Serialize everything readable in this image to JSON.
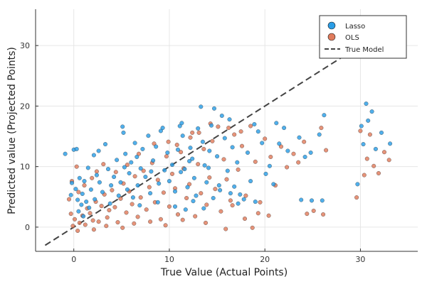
{
  "chart_data": {
    "type": "scatter",
    "title": "",
    "xlabel": "True Value (Actual Points)",
    "ylabel": "Predicted value (Projected Points)",
    "xlim": [
      -4,
      36
    ],
    "ylim": [
      -4,
      36
    ],
    "xticks": [
      0,
      10,
      20,
      30
    ],
    "yticks": [
      0,
      10,
      20,
      30
    ],
    "grid": true,
    "legend_position": "top-right",
    "series": [
      {
        "name": "Lasso",
        "color": "#2a9de6",
        "points": [
          [
            -0.2,
            7.3
          ],
          [
            0,
            12.8
          ],
          [
            0.3,
            12.9
          ],
          [
            -0.9,
            12.1
          ],
          [
            0.6,
            8.1
          ],
          [
            0.2,
            6.3
          ],
          [
            -0.3,
            5.3
          ],
          [
            0.4,
            4.5
          ],
          [
            0.8,
            3.7
          ],
          [
            1.1,
            7.6
          ],
          [
            1.5,
            9.8
          ],
          [
            0.9,
            5.5
          ],
          [
            1.3,
            4.2
          ],
          [
            1.8,
            6.2
          ],
          [
            2.1,
            11.9
          ],
          [
            2.4,
            8.6
          ],
          [
            2.7,
            7.4
          ],
          [
            3.0,
            5.8
          ],
          [
            2.6,
            12.6
          ],
          [
            3.3,
            13.7
          ],
          [
            3.6,
            9.6
          ],
          [
            3.9,
            6.9
          ],
          [
            4.2,
            8.3
          ],
          [
            4.5,
            11.1
          ],
          [
            4.9,
            7.4
          ],
          [
            5.1,
            16.6
          ],
          [
            5.2,
            15.6
          ],
          [
            5.4,
            12.1
          ],
          [
            5.6,
            6.2
          ],
          [
            5.8,
            8.9
          ],
          [
            6.0,
            10.7
          ],
          [
            6.2,
            4.9
          ],
          [
            6.4,
            13.9
          ],
          [
            6.7,
            6.9
          ],
          [
            7.0,
            9.7
          ],
          [
            7.2,
            12.9
          ],
          [
            7.5,
            8.3
          ],
          [
            7.8,
            15.1
          ],
          [
            8.0,
            5.6
          ],
          [
            8.3,
            11.0
          ],
          [
            8.6,
            13.3
          ],
          [
            8.9,
            7.2
          ],
          [
            9.1,
            15.9
          ],
          [
            9.3,
            16.4
          ],
          [
            9.5,
            9.4
          ],
          [
            9.8,
            12.3
          ],
          [
            10.0,
            7.6
          ],
          [
            10.3,
            10.3
          ],
          [
            10.6,
            5.9
          ],
          [
            10.9,
            12.8
          ],
          [
            11.1,
            16.7
          ],
          [
            11.3,
            17.2
          ],
          [
            11.4,
            15.1
          ],
          [
            11.6,
            9.6
          ],
          [
            11.9,
            6.6
          ],
          [
            12.2,
            13.1
          ],
          [
            12.4,
            11.3
          ],
          [
            12.6,
            8.1
          ],
          [
            12.8,
            5.2
          ],
          [
            13.0,
            16.3
          ],
          [
            13.3,
            19.9
          ],
          [
            13.5,
            14.1
          ],
          [
            13.7,
            10.2
          ],
          [
            13.9,
            7.4
          ],
          [
            14.2,
            12.6
          ],
          [
            14.4,
            16.8
          ],
          [
            14.7,
            19.6
          ],
          [
            15.0,
            11.7
          ],
          [
            15.2,
            6.9
          ],
          [
            15.5,
            18.4
          ],
          [
            15.8,
            14.7
          ],
          [
            16.1,
            9.3
          ],
          [
            16.3,
            17.8
          ],
          [
            16.6,
            13.2
          ],
          [
            16.8,
            6.7
          ],
          [
            17.1,
            10.7
          ],
          [
            17.4,
            5.4
          ],
          [
            17.8,
            4.6
          ],
          [
            18.2,
            12.3
          ],
          [
            18.5,
            7.6
          ],
          [
            18.9,
            17.0
          ],
          [
            19.3,
            15.8
          ],
          [
            19.7,
            13.9
          ],
          [
            20.1,
            8.8
          ],
          [
            20.5,
            10.1
          ],
          [
            20.9,
            7.1
          ],
          [
            21.2,
            17.2
          ],
          [
            21.5,
            13.8
          ],
          [
            22.0,
            16.4
          ],
          [
            22.4,
            12.6
          ],
          [
            23.6,
            14.8
          ],
          [
            24.2,
            11.6
          ],
          [
            24.8,
            12.3
          ],
          [
            23.8,
            4.5
          ],
          [
            24.9,
            4.4
          ],
          [
            26.0,
            4.4
          ],
          [
            26.2,
            18.5
          ],
          [
            25.7,
            15.3
          ],
          [
            29.7,
            7.1
          ],
          [
            30.1,
            16.7
          ],
          [
            30.3,
            13.7
          ],
          [
            30.6,
            20.4
          ],
          [
            30.8,
            17.6
          ],
          [
            31.2,
            19.1
          ],
          [
            31.6,
            12.9
          ],
          [
            32.2,
            15.6
          ],
          [
            33.1,
            13.8
          ],
          [
            0.5,
            2.6
          ],
          [
            1.0,
            1.8
          ],
          [
            1.6,
            3.2
          ],
          [
            2.2,
            4.6
          ],
          [
            3.8,
            3.9
          ],
          [
            4.7,
            5.2
          ],
          [
            6.9,
            3.6
          ],
          [
            8.8,
            4.1
          ],
          [
            10.6,
            3.4
          ],
          [
            11.7,
            2.9
          ],
          [
            12.5,
            4.3
          ],
          [
            13.6,
            3.1
          ],
          [
            14.6,
            4.8
          ],
          [
            15.3,
            6.1
          ],
          [
            16.4,
            5.6
          ],
          [
            17.2,
            3.9
          ],
          [
            19.0,
            4.2
          ],
          [
            12.1,
            10.9
          ],
          [
            11.2,
            9.1
          ],
          [
            14.1,
            9.8
          ],
          [
            5.3,
            9.9
          ],
          [
            6.6,
            11.6
          ],
          [
            8.1,
            9.2
          ]
        ]
      },
      {
        "name": "OLS",
        "color": "#e07b5c",
        "points": [
          [
            -0.3,
            2.2
          ],
          [
            0.1,
            1.3
          ],
          [
            -0.1,
            0.2
          ],
          [
            0.4,
            -0.6
          ],
          [
            0.6,
            0.7
          ],
          [
            0.9,
            1.9
          ],
          [
            1.2,
            0.4
          ],
          [
            1.4,
            3.1
          ],
          [
            1.7,
            2.3
          ],
          [
            2.0,
            1.1
          ],
          [
            2.3,
            4.2
          ],
          [
            2.6,
            0.9
          ],
          [
            2.9,
            3.5
          ],
          [
            3.2,
            5.4
          ],
          [
            3.5,
            1.6
          ],
          [
            3.7,
            2.8
          ],
          [
            4.0,
            6.1
          ],
          [
            4.3,
            3.3
          ],
          [
            4.6,
            0.8
          ],
          [
            4.9,
            4.7
          ],
          [
            5.2,
            7.2
          ],
          [
            5.5,
            2.4
          ],
          [
            5.8,
            5.9
          ],
          [
            6.1,
            3.8
          ],
          [
            6.4,
            8.4
          ],
          [
            6.7,
            1.7
          ],
          [
            7.0,
            4.9
          ],
          [
            7.3,
            9.3
          ],
          [
            7.6,
            2.9
          ],
          [
            7.9,
            6.6
          ],
          [
            8.2,
            10.6
          ],
          [
            8.5,
            4.1
          ],
          [
            8.8,
            7.8
          ],
          [
            9.1,
            1.3
          ],
          [
            9.4,
            5.7
          ],
          [
            9.7,
            11.7
          ],
          [
            10.0,
            3.4
          ],
          [
            10.3,
            8.8
          ],
          [
            10.6,
            6.4
          ],
          [
            10.9,
            2.1
          ],
          [
            11.2,
            12.4
          ],
          [
            11.5,
            9.7
          ],
          [
            11.8,
            4.8
          ],
          [
            12.1,
            7.1
          ],
          [
            12.4,
            15.6
          ],
          [
            12.7,
            1.8
          ],
          [
            13.0,
            10.4
          ],
          [
            13.3,
            5.6
          ],
          [
            13.6,
            12.9
          ],
          [
            13.9,
            3.7
          ],
          [
            14.2,
            8.2
          ],
          [
            14.5,
            14.2
          ],
          [
            14.8,
            6.3
          ],
          [
            15.1,
            16.6
          ],
          [
            15.4,
            2.6
          ],
          [
            15.7,
            11.2
          ],
          [
            16.0,
            7.9
          ],
          [
            16.4,
            4.4
          ],
          [
            16.8,
            15.3
          ],
          [
            17.2,
            9.5
          ],
          [
            17.6,
            13.4
          ],
          [
            18.0,
            5.2
          ],
          [
            18.5,
            16.7
          ],
          [
            19.0,
            10.8
          ],
          [
            19.5,
            4.1
          ],
          [
            20.0,
            14.6
          ],
          [
            20.6,
            11.6
          ],
          [
            21.1,
            6.9
          ],
          [
            21.7,
            13.3
          ],
          [
            22.3,
            9.9
          ],
          [
            23.0,
            12.1
          ],
          [
            23.5,
            10.7
          ],
          [
            24.1,
            14.1
          ],
          [
            24.4,
            2.2
          ],
          [
            25.1,
            2.7
          ],
          [
            26.1,
            2.1
          ],
          [
            25.9,
            16.4
          ],
          [
            26.4,
            12.7
          ],
          [
            29.6,
            4.9
          ],
          [
            30.0,
            15.9
          ],
          [
            30.4,
            8.6
          ],
          [
            30.7,
            11.3
          ],
          [
            31.0,
            15.3
          ],
          [
            31.4,
            10.1
          ],
          [
            31.9,
            8.9
          ],
          [
            32.5,
            12.4
          ],
          [
            33.0,
            11.1
          ],
          [
            -0.5,
            4.6
          ],
          [
            -0.2,
            7.6
          ],
          [
            0.3,
            10.0
          ],
          [
            0.5,
            5.8
          ],
          [
            1.1,
            6.9
          ],
          [
            1.9,
            8.1
          ],
          [
            2.4,
            9.2
          ],
          [
            3.1,
            10.4
          ],
          [
            4.4,
            9.1
          ],
          [
            5.6,
            10.3
          ],
          [
            6.8,
            12.1
          ],
          [
            8.4,
            13.8
          ],
          [
            9.9,
            14.1
          ],
          [
            10.8,
            13.6
          ],
          [
            12.2,
            14.8
          ],
          [
            13.1,
            15.6
          ],
          [
            14.3,
            17.1
          ],
          [
            16.2,
            16.4
          ],
          [
            17.5,
            15.8
          ],
          [
            2.1,
            -0.4
          ],
          [
            3.4,
            0.2
          ],
          [
            5.1,
            -0.1
          ],
          [
            6.3,
            0.6
          ],
          [
            8.0,
            0.9
          ],
          [
            9.6,
            0.3
          ],
          [
            11.4,
            1.2
          ],
          [
            13.8,
            0.7
          ],
          [
            15.9,
            -0.3
          ],
          [
            17.9,
            1.4
          ],
          [
            19.3,
            2.3
          ],
          [
            20.4,
            1.9
          ],
          [
            18.7,
            -0.1
          ],
          [
            16.6,
            3.6
          ]
        ]
      },
      {
        "name": "True Model",
        "color": "#444444",
        "line": [
          [
            -3,
            -3
          ],
          [
            34,
            34
          ]
        ]
      }
    ]
  }
}
